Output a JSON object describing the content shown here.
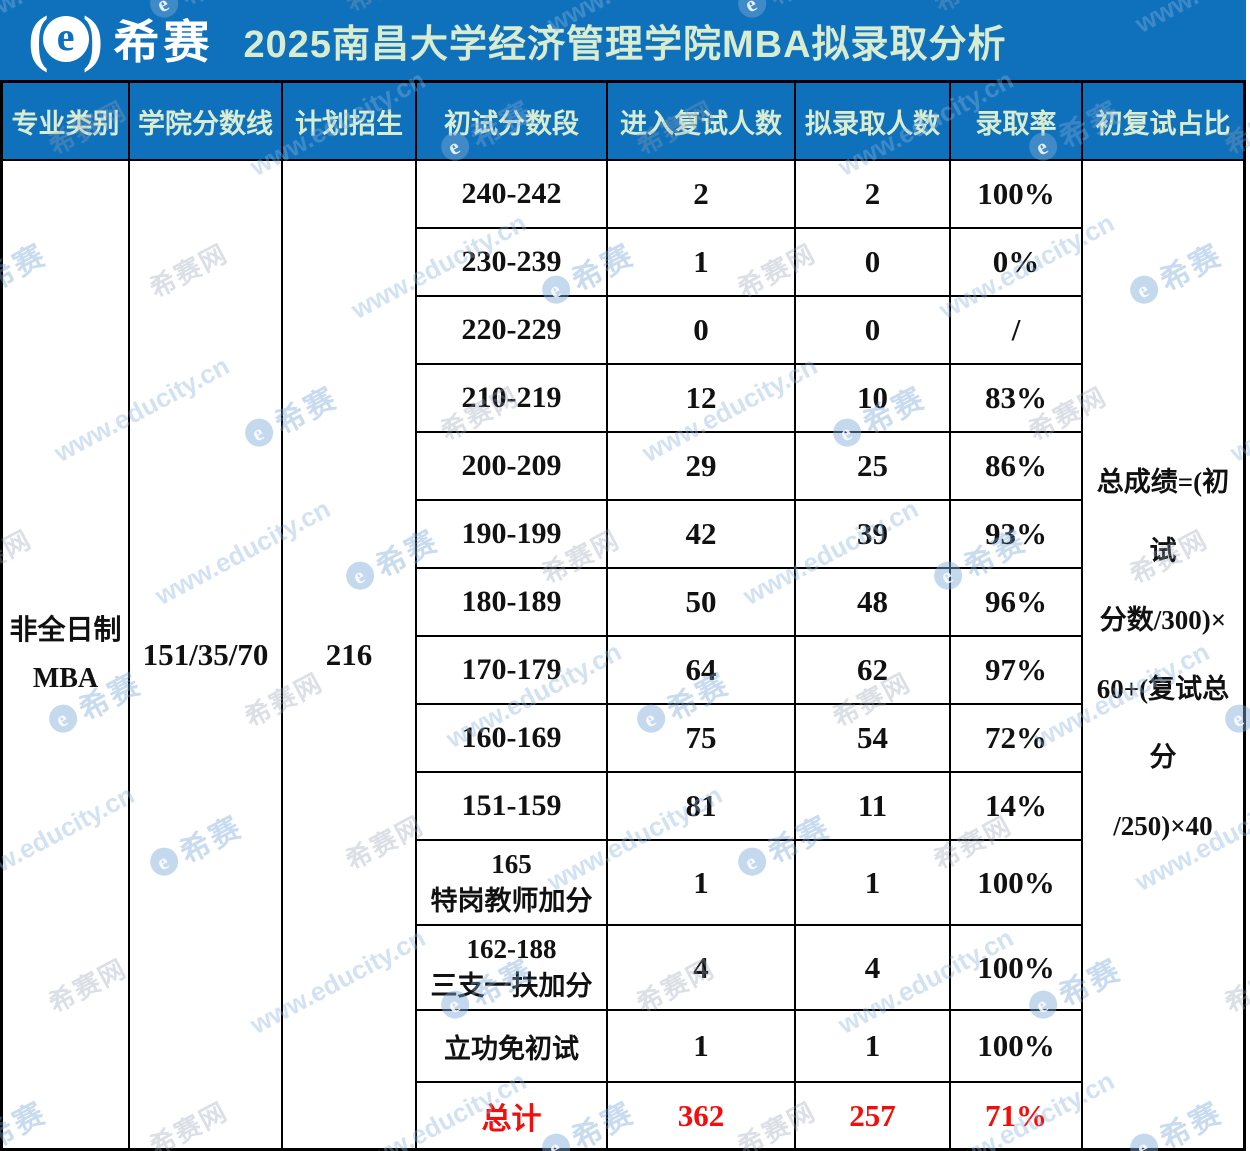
{
  "page": {
    "brand": "希赛",
    "logo_letter": "e",
    "title": "2025南昌大学经济管理学院MBA拟录取分析"
  },
  "colors": {
    "header_blue": "#0f70bb",
    "header_text_green": "#d8ecd2",
    "total_row_red": "#f30d0d",
    "grid_line": "#000000",
    "cell_bg": "#ffffff"
  },
  "table": {
    "columns": [
      "专业类别",
      "学院分数线",
      "计划招生",
      "初试分数段",
      "进入复试人数",
      "拟录取人数",
      "录取率",
      "初复试占比"
    ],
    "major_type": "非全日制\nMBA",
    "score_line": "151/35/70",
    "plan_enrollment": "216",
    "formula": "总成绩=(初试\n分数/300)×\n60+(复试总分\n/250)×40",
    "rows": [
      {
        "range": "240-242",
        "retest": "2",
        "admit": "2",
        "rate": "100%"
      },
      {
        "range": "230-239",
        "retest": "1",
        "admit": "0",
        "rate": "0%"
      },
      {
        "range": "220-229",
        "retest": "0",
        "admit": "0",
        "rate": "/"
      },
      {
        "range": "210-219",
        "retest": "12",
        "admit": "10",
        "rate": "83%"
      },
      {
        "range": "200-209",
        "retest": "29",
        "admit": "25",
        "rate": "86%"
      },
      {
        "range": "190-199",
        "retest": "42",
        "admit": "39",
        "rate": "93%"
      },
      {
        "range": "180-189",
        "retest": "50",
        "admit": "48",
        "rate": "96%"
      },
      {
        "range": "170-179",
        "retest": "64",
        "admit": "62",
        "rate": "97%"
      },
      {
        "range": "160-169",
        "retest": "75",
        "admit": "54",
        "rate": "72%"
      },
      {
        "range": "151-159",
        "retest": "81",
        "admit": "11",
        "rate": "14%"
      },
      {
        "range": "165\n特岗教师加分",
        "retest": "1",
        "admit": "1",
        "rate": "100%"
      },
      {
        "range": "162-188\n三支一扶加分",
        "retest": "4",
        "admit": "4",
        "rate": "100%"
      },
      {
        "range": "立功免初试",
        "retest": "1",
        "admit": "1",
        "rate": "100%"
      }
    ],
    "total": {
      "label": "总计",
      "retest": "362",
      "admit": "257",
      "rate": "71%"
    }
  },
  "watermark": {
    "url_text": "www.educity.cn",
    "site_text": "希赛网",
    "brand_text": "希赛",
    "logo_letter": "e"
  }
}
